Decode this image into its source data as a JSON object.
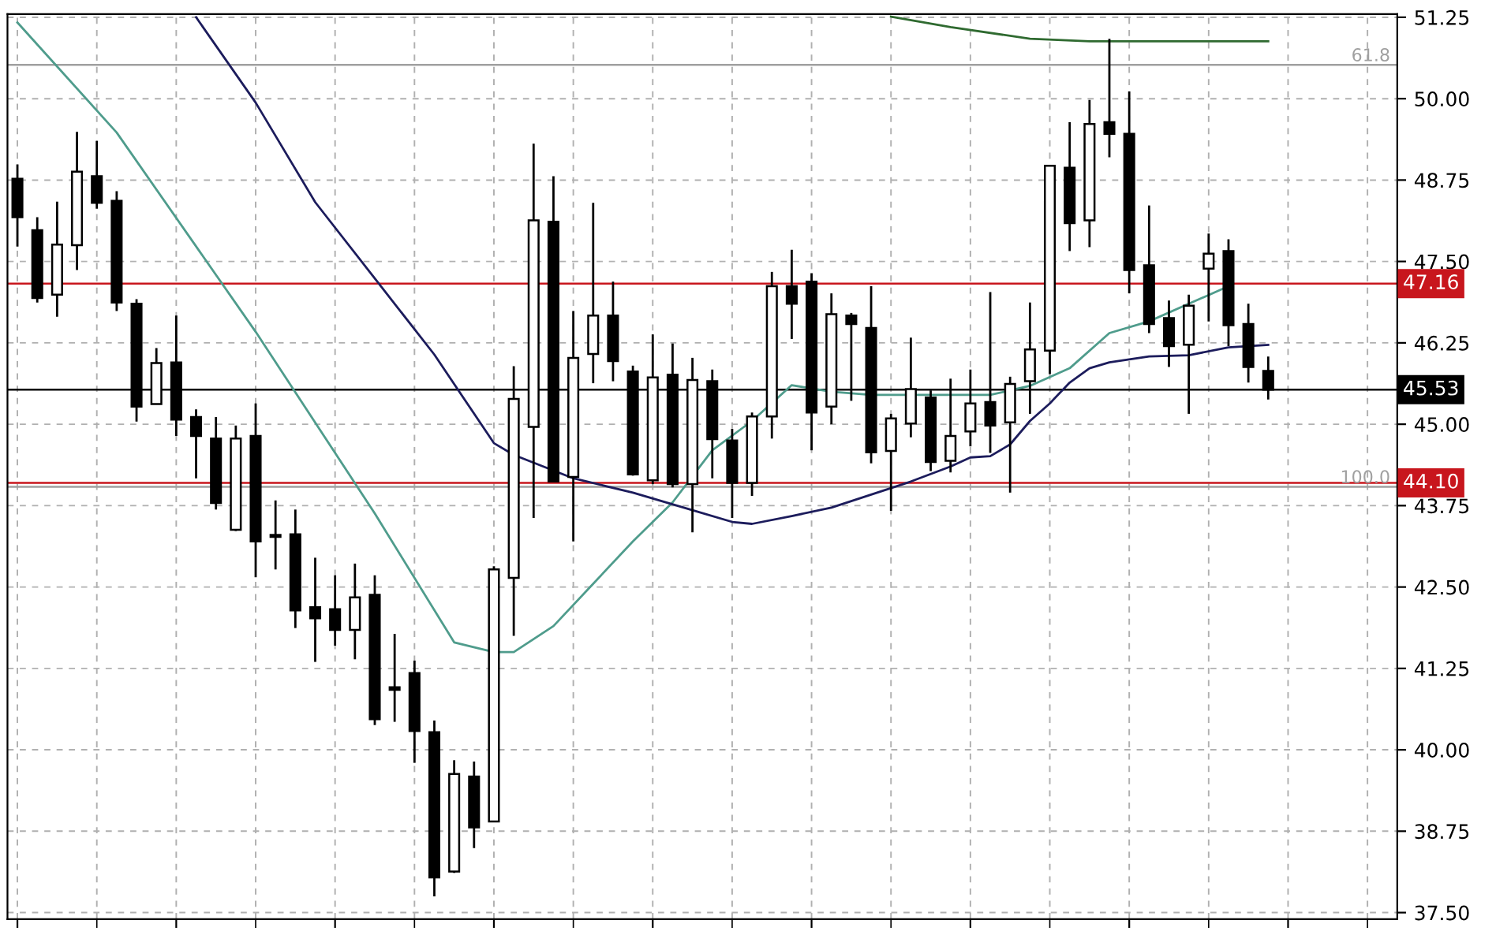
{
  "chart_data": {
    "type": "candlestick",
    "categories": [
      null,
      null,
      null,
      null,
      null,
      null,
      null,
      null,
      null,
      null,
      null,
      null,
      null,
      null,
      null,
      null,
      null,
      null,
      null,
      null,
      null,
      null,
      null,
      null,
      null,
      null,
      null,
      null,
      null,
      null,
      null,
      null,
      null,
      null,
      null,
      null,
      null,
      null,
      null,
      null,
      null,
      null,
      null,
      null,
      null,
      null,
      null,
      null,
      null,
      null,
      null,
      null,
      null,
      null,
      null,
      null,
      null,
      null,
      null,
      null,
      null,
      null,
      null,
      null,
      null,
      null,
      null,
      null,
      null,
      null
    ],
    "ohlc": [
      [
        48.77,
        48.99,
        47.73,
        48.18
      ],
      [
        47.98,
        48.18,
        46.87,
        46.94
      ],
      [
        46.99,
        48.42,
        46.65,
        47.76
      ],
      [
        47.75,
        49.49,
        47.37,
        48.88
      ],
      [
        48.81,
        49.35,
        48.31,
        48.4
      ],
      [
        48.43,
        48.58,
        46.74,
        46.87
      ],
      [
        46.85,
        46.92,
        45.04,
        45.27
      ],
      [
        45.31,
        46.17,
        45.31,
        45.94
      ],
      [
        45.95,
        46.67,
        44.82,
        45.07
      ],
      [
        45.11,
        45.23,
        44.17,
        44.82
      ],
      [
        44.78,
        45.11,
        43.69,
        43.79
      ],
      [
        43.38,
        44.98,
        43.36,
        44.78
      ],
      [
        44.82,
        45.32,
        42.65,
        43.2
      ],
      [
        43.3,
        43.83,
        42.77,
        43.27
      ],
      [
        43.31,
        43.69,
        41.87,
        42.14
      ],
      [
        42.19,
        42.95,
        41.35,
        42.02
      ],
      [
        42.16,
        42.68,
        41.6,
        41.84
      ],
      [
        41.84,
        42.86,
        41.39,
        42.34
      ],
      [
        42.38,
        42.68,
        40.38,
        40.47
      ],
      [
        40.96,
        41.78,
        40.43,
        40.92
      ],
      [
        41.18,
        41.37,
        39.8,
        40.29
      ],
      [
        40.27,
        40.45,
        37.75,
        38.04
      ],
      [
        38.13,
        39.84,
        38.11,
        39.63
      ],
      [
        39.59,
        39.82,
        38.49,
        38.81
      ],
      [
        38.9,
        42.82,
        38.9,
        42.77
      ],
      [
        42.64,
        45.89,
        41.75,
        45.39
      ],
      [
        44.96,
        49.31,
        43.56,
        48.13
      ],
      [
        48.11,
        48.81,
        44.12,
        44.12
      ],
      [
        44.19,
        46.74,
        43.2,
        46.02
      ],
      [
        46.08,
        48.4,
        45.63,
        46.67
      ],
      [
        46.67,
        47.19,
        45.66,
        45.97
      ],
      [
        45.81,
        45.9,
        44.21,
        44.23
      ],
      [
        44.14,
        46.38,
        44.08,
        45.72
      ],
      [
        45.76,
        46.24,
        44.03,
        44.08
      ],
      [
        44.08,
        46.02,
        43.34,
        45.68
      ],
      [
        45.66,
        45.84,
        44.17,
        44.77
      ],
      [
        44.75,
        44.93,
        43.56,
        44.1
      ],
      [
        44.1,
        45.18,
        43.9,
        45.12
      ],
      [
        45.12,
        47.34,
        44.78,
        47.12
      ],
      [
        47.12,
        47.68,
        46.31,
        46.85
      ],
      [
        47.19,
        47.32,
        44.6,
        45.18
      ],
      [
        45.27,
        47.01,
        45.0,
        46.69
      ],
      [
        46.67,
        46.71,
        45.36,
        46.54
      ],
      [
        46.48,
        47.12,
        44.4,
        44.57
      ],
      [
        44.59,
        45.16,
        43.67,
        45.09
      ],
      [
        45.01,
        46.33,
        44.8,
        45.54
      ],
      [
        45.41,
        45.52,
        44.28,
        44.42
      ],
      [
        44.44,
        45.7,
        44.26,
        44.82
      ],
      [
        44.89,
        45.84,
        44.66,
        45.32
      ],
      [
        45.34,
        47.03,
        44.56,
        44.98
      ],
      [
        45.03,
        45.73,
        43.95,
        45.62
      ],
      [
        45.66,
        46.87,
        45.16,
        46.15
      ],
      [
        46.13,
        48.97,
        45.77,
        48.97
      ],
      [
        48.94,
        49.64,
        47.66,
        48.09
      ],
      [
        48.13,
        49.98,
        47.72,
        49.61
      ],
      [
        49.64,
        50.92,
        49.1,
        49.46
      ],
      [
        49.46,
        50.11,
        47.01,
        47.37
      ],
      [
        47.44,
        48.36,
        46.4,
        46.54
      ],
      [
        46.63,
        46.9,
        45.88,
        46.2
      ],
      [
        46.22,
        46.99,
        45.16,
        46.82
      ],
      [
        47.39,
        47.93,
        46.58,
        47.62
      ],
      [
        47.66,
        47.84,
        46.2,
        46.52
      ],
      [
        46.54,
        46.85,
        45.64,
        45.88
      ],
      [
        45.82,
        46.04,
        45.38,
        45.53
      ],
      null,
      null,
      null,
      null,
      null,
      null
    ],
    "series": [
      {
        "type": "line",
        "color": "#4f9c8c",
        "values": [
          51.17,
          null,
          null,
          null,
          null,
          49.48,
          null,
          null,
          null,
          null,
          null,
          null,
          46.42,
          null,
          null,
          null,
          null,
          null,
          43.63,
          null,
          null,
          null,
          41.65,
          null,
          41.5,
          41.5,
          null,
          41.9,
          null,
          42.55,
          null,
          43.2,
          null,
          43.8,
          null,
          44.6,
          null,
          45.05,
          null,
          45.6,
          null,
          45.5,
          null,
          45.45,
          null,
          45.45,
          null,
          null,
          45.45,
          45.45,
          null,
          45.59,
          null,
          45.86,
          null,
          46.4,
          null,
          46.58,
          null,
          46.85,
          null,
          47.12,
          null,
          null,
          null,
          null,
          null,
          null,
          null,
          null
        ]
      },
      {
        "type": "line",
        "color": "#1c1c5c",
        "values": [
          null,
          null,
          null,
          null,
          null,
          null,
          null,
          null,
          null,
          51.25,
          null,
          null,
          49.94,
          null,
          null,
          48.41,
          null,
          null,
          47.24,
          null,
          null,
          46.07,
          null,
          null,
          44.71,
          44.53,
          null,
          null,
          44.17,
          null,
          null,
          43.95,
          null,
          null,
          43.68,
          null,
          43.5,
          43.47,
          null,
          43.59,
          null,
          43.72,
          null,
          43.92,
          null,
          44.12,
          null,
          44.35,
          44.49,
          44.51,
          44.69,
          45.05,
          45.32,
          45.64,
          45.86,
          45.95,
          null,
          46.04,
          null,
          46.06,
          null,
          46.18,
          null,
          46.22,
          null,
          null,
          null,
          null,
          null,
          null
        ]
      },
      {
        "type": "line",
        "color": "#2f6a30",
        "values": [
          null,
          null,
          null,
          null,
          null,
          null,
          null,
          null,
          null,
          null,
          null,
          null,
          null,
          null,
          null,
          null,
          null,
          null,
          null,
          null,
          null,
          null,
          null,
          null,
          null,
          null,
          null,
          null,
          null,
          null,
          null,
          null,
          null,
          null,
          null,
          null,
          null,
          null,
          null,
          null,
          null,
          null,
          null,
          null,
          51.26,
          null,
          null,
          51.1,
          null,
          null,
          null,
          50.92,
          null,
          null,
          50.88,
          null,
          null,
          50.88,
          null,
          null,
          null,
          null,
          null,
          50.88,
          null,
          null,
          null,
          null,
          null,
          null
        ]
      }
    ],
    "ylim": [
      37.4,
      51.3
    ],
    "yticks": [
      {
        "value": 37.5,
        "label": "37.50"
      },
      {
        "value": 38.75,
        "label": "38.75"
      },
      {
        "value": 40,
        "label": "40.00"
      },
      {
        "value": 41.25,
        "label": "41.25"
      },
      {
        "value": 42.5,
        "label": "42.50"
      },
      {
        "value": 43.75,
        "label": "43.75"
      },
      {
        "value": 45,
        "label": "45.00"
      },
      {
        "value": 46.25,
        "label": "46.25"
      },
      {
        "value": 47.5,
        "label": "47.50"
      },
      {
        "value": 48.75,
        "label": "48.75"
      },
      {
        "value": 50,
        "label": "50.00"
      },
      {
        "value": 51.25,
        "label": "51.25"
      }
    ],
    "ref_lines": [
      {
        "axis": "y",
        "value": 50.52,
        "color": "#a0a0a0"
      },
      {
        "axis": "y",
        "value": 44.04,
        "color": "#a0a0a0"
      },
      {
        "axis": "y",
        "value": 47.16,
        "label": "47.16",
        "color": "#c8161d"
      },
      {
        "axis": "y",
        "value": 44.1,
        "label": "44.10",
        "color": "#c8161d"
      },
      {
        "axis": "y",
        "value": 45.53,
        "label": "45.53",
        "color": "#000000"
      }
    ],
    "annotations": [
      {
        "text": "61.8",
        "y": 50.52
      },
      {
        "text": "100.0",
        "y": 44.04
      }
    ],
    "grid": true,
    "legend": false,
    "marker": "none",
    "line_style": "solid"
  }
}
